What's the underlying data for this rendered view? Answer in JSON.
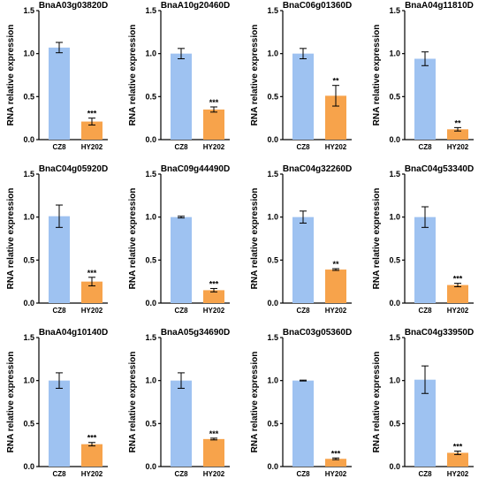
{
  "colors": {
    "control": "#9EC2F1",
    "treatment": "#F7A34B",
    "axis": "#000000"
  },
  "common": {
    "ylabel": "RNA  relative expression",
    "yticks": [
      "0.0",
      "0.5",
      "1.0",
      "1.5"
    ],
    "ylim": [
      0,
      1.5
    ]
  },
  "chart_data": [
    {
      "type": "bar",
      "title": "BnaA03g03820D",
      "categories": [
        "CZ8",
        "HY202"
      ],
      "values": [
        1.07,
        0.21
      ],
      "errors": [
        0.06,
        0.04
      ],
      "significance": [
        "",
        "***"
      ],
      "ylim": [
        0,
        1.5
      ]
    },
    {
      "type": "bar",
      "title": "BnaA10g20460D",
      "categories": [
        "CZ8",
        "HY202"
      ],
      "values": [
        1.0,
        0.35
      ],
      "errors": [
        0.06,
        0.03
      ],
      "significance": [
        "",
        "***"
      ],
      "ylim": [
        0,
        1.5
      ]
    },
    {
      "type": "bar",
      "title": "BnaC06g01360D",
      "categories": [
        "CZ8",
        "HY202"
      ],
      "values": [
        1.0,
        0.51
      ],
      "errors": [
        0.06,
        0.12
      ],
      "significance": [
        "",
        "**"
      ],
      "ylim": [
        0,
        1.5
      ]
    },
    {
      "type": "bar",
      "title": "BnaA04g11810D",
      "categories": [
        "CZ8",
        "HY202"
      ],
      "values": [
        0.94,
        0.12
      ],
      "errors": [
        0.08,
        0.02
      ],
      "significance": [
        "",
        "**"
      ],
      "ylim": [
        0,
        1.5
      ]
    },
    {
      "type": "bar",
      "title": "BnaC04g05920D",
      "categories": [
        "CZ8",
        "HY202"
      ],
      "values": [
        1.01,
        0.25
      ],
      "errors": [
        0.13,
        0.05
      ],
      "significance": [
        "",
        "***"
      ],
      "ylim": [
        0,
        1.5
      ]
    },
    {
      "type": "bar",
      "title": "BnaC09g44490D",
      "categories": [
        "CZ8",
        "HY202"
      ],
      "values": [
        1.0,
        0.15
      ],
      "errors": [
        0.01,
        0.02
      ],
      "significance": [
        "",
        "***"
      ],
      "ylim": [
        0,
        1.5
      ]
    },
    {
      "type": "bar",
      "title": "BnaC04g32260D",
      "categories": [
        "CZ8",
        "HY202"
      ],
      "values": [
        1.0,
        0.39
      ],
      "errors": [
        0.07,
        0.01
      ],
      "significance": [
        "",
        "**"
      ],
      "ylim": [
        0,
        1.5
      ]
    },
    {
      "type": "bar",
      "title": "BnaC04g53340D",
      "categories": [
        "CZ8",
        "HY202"
      ],
      "values": [
        1.0,
        0.21
      ],
      "errors": [
        0.12,
        0.02
      ],
      "significance": [
        "",
        "***"
      ],
      "ylim": [
        0,
        1.5
      ]
    },
    {
      "type": "bar",
      "title": "BnaA04g10140D",
      "categories": [
        "CZ8",
        "HY202"
      ],
      "values": [
        1.0,
        0.26
      ],
      "errors": [
        0.09,
        0.02
      ],
      "significance": [
        "",
        "***"
      ],
      "ylim": [
        0,
        1.5
      ]
    },
    {
      "type": "bar",
      "title": "BnaA05g34690D",
      "categories": [
        "CZ8",
        "HY202"
      ],
      "values": [
        1.0,
        0.32
      ],
      "errors": [
        0.09,
        0.01
      ],
      "significance": [
        "",
        "***"
      ],
      "ylim": [
        0,
        1.5
      ]
    },
    {
      "type": "bar",
      "title": "BnaC03g05360D",
      "categories": [
        "CZ8",
        "HY202"
      ],
      "values": [
        1.0,
        0.09
      ],
      "errors": [
        0.005,
        0.01
      ],
      "significance": [
        "",
        "***"
      ],
      "ylim": [
        0,
        1.5
      ]
    },
    {
      "type": "bar",
      "title": "BnaC04g33950D",
      "categories": [
        "CZ8",
        "HY202"
      ],
      "values": [
        1.01,
        0.16
      ],
      "errors": [
        0.16,
        0.02
      ],
      "significance": [
        "",
        "***"
      ],
      "ylim": [
        0,
        1.5
      ]
    }
  ]
}
